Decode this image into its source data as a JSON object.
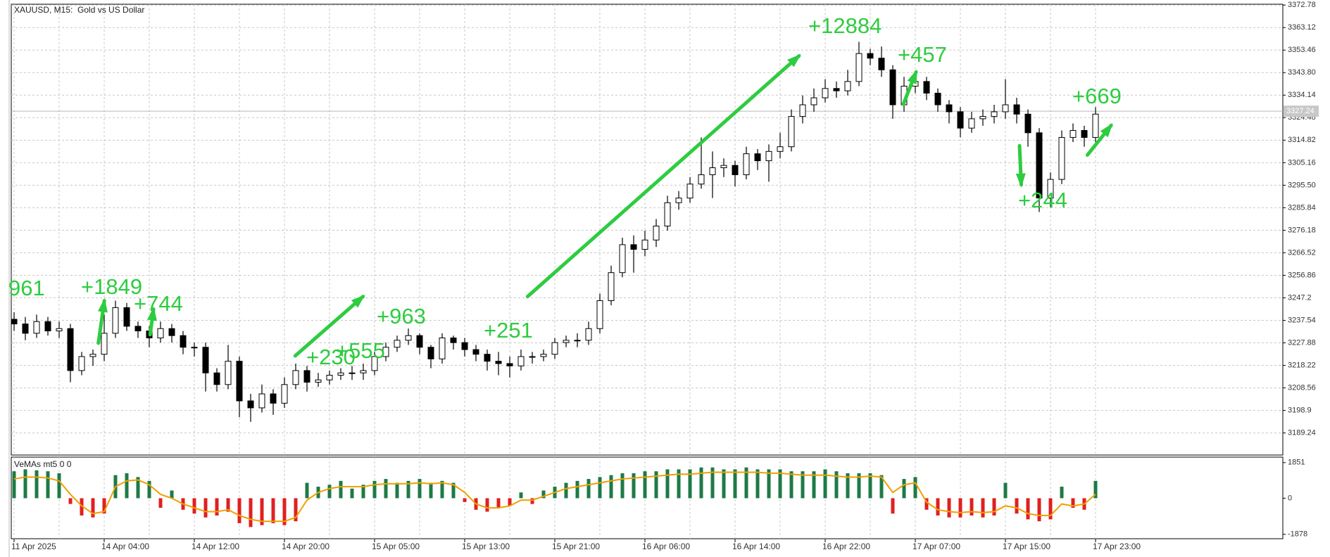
{
  "chart_data": [
    {
      "type": "candlestick",
      "title": "XAUUSD, M15:  Gold vs US Dollar",
      "categories": [
        "11 Apr 2025",
        null,
        null,
        null,
        null,
        null,
        null,
        null,
        "14 Apr 04:00",
        null,
        null,
        null,
        null,
        null,
        null,
        null,
        "14 Apr 12:00",
        null,
        null,
        null,
        null,
        null,
        null,
        null,
        "14 Apr 20:00",
        null,
        null,
        null,
        null,
        null,
        null,
        null,
        "15 Apr 05:00",
        null,
        null,
        null,
        null,
        null,
        null,
        null,
        "15 Apr 13:00",
        null,
        null,
        null,
        null,
        null,
        null,
        null,
        "15 Apr 21:00",
        null,
        null,
        null,
        null,
        null,
        null,
        null,
        "16 Apr 06:00",
        null,
        null,
        null,
        null,
        null,
        null,
        null,
        "16 Apr 14:00",
        null,
        null,
        null,
        null,
        null,
        null,
        null,
        "16 Apr 22:00",
        null,
        null,
        null,
        null,
        null,
        null,
        null,
        "17 Apr 07:00",
        null,
        null,
        null,
        null,
        null,
        null,
        null,
        "17 Apr 15:00",
        null,
        null,
        null,
        null,
        null,
        null,
        null,
        "17 Apr 23:00"
      ],
      "open": [
        3238,
        3236,
        3232,
        3237,
        3233,
        3234,
        3216,
        3222,
        3223,
        3232,
        3243,
        3235,
        3233,
        3230,
        3234,
        3231,
        3226,
        3226,
        3215,
        3210,
        3220,
        3203,
        3200,
        3206,
        3202,
        3210,
        3216,
        3211,
        3212,
        3214,
        3215,
        3215,
        3216,
        3222,
        3226,
        3229,
        3231,
        3226,
        3221,
        3230,
        3228,
        3225,
        3223,
        3220,
        3219,
        3218,
        3222,
        3222,
        3223,
        3228,
        3229,
        3229,
        3234,
        3246,
        3258,
        3270,
        3268,
        3272,
        3278,
        3288,
        3290,
        3296,
        3300,
        3303,
        3304,
        3300,
        3309,
        3306,
        3310,
        3312,
        3325,
        3330,
        3333,
        3337,
        3336,
        3340,
        3352,
        3350,
        3345,
        3330,
        3338,
        3340,
        3335,
        3330,
        3327,
        3320,
        3324,
        3325,
        3327,
        3330,
        3326,
        3318,
        3290,
        3298,
        3316,
        3319,
        3316
      ],
      "high": [
        3241,
        3239,
        3240,
        3239,
        3237,
        3236,
        3224,
        3225,
        3240,
        3246,
        3245,
        3237,
        3235,
        3237,
        3236,
        3233,
        3228,
        3228,
        3217,
        3227,
        3222,
        3206,
        3210,
        3208,
        3213,
        3219,
        3218,
        3215,
        3216,
        3217,
        3218,
        3219,
        3224,
        3228,
        3231,
        3234,
        3232,
        3227,
        3232,
        3231,
        3230,
        3227,
        3225,
        3224,
        3222,
        3225,
        3224,
        3225,
        3230,
        3231,
        3232,
        3237,
        3249,
        3261,
        3273,
        3274,
        3276,
        3281,
        3291,
        3293,
        3299,
        3316,
        3310,
        3307,
        3306,
        3312,
        3311,
        3313,
        3318,
        3328,
        3334,
        3337,
        3341,
        3340,
        3345,
        3357,
        3354,
        3355,
        3347,
        3342,
        3344,
        3342,
        3337,
        3332,
        3329,
        3327,
        3328,
        3330,
        3341,
        3333,
        3328,
        3320,
        3301,
        3319,
        3322,
        3321,
        3329
      ],
      "low": [
        3233,
        3229,
        3230,
        3231,
        3230,
        3211,
        3214,
        3218,
        3220,
        3230,
        3233,
        3230,
        3226,
        3228,
        3228,
        3223,
        3222,
        3207,
        3207,
        3208,
        3196,
        3194,
        3198,
        3197,
        3200,
        3208,
        3207,
        3209,
        3210,
        3212,
        3212,
        3212,
        3214,
        3220,
        3224,
        3227,
        3223,
        3217,
        3219,
        3225,
        3222,
        3220,
        3216,
        3214,
        3213,
        3216,
        3219,
        3220,
        3221,
        3226,
        3226,
        3227,
        3232,
        3244,
        3256,
        3258,
        3265,
        3269,
        3276,
        3285,
        3288,
        3294,
        3290,
        3299,
        3295,
        3298,
        3302,
        3297,
        3307,
        3310,
        3322,
        3327,
        3331,
        3333,
        3334,
        3338,
        3347,
        3342,
        3324,
        3327,
        3335,
        3332,
        3327,
        3322,
        3316,
        3318,
        3321,
        3322,
        3324,
        3322,
        3312,
        3284,
        3286,
        3296,
        3314,
        3312,
        3314
      ],
      "close": [
        3236,
        3232,
        3237,
        3233,
        3234,
        3216,
        3222,
        3223,
        3232,
        3243,
        3235,
        3233,
        3230,
        3234,
        3231,
        3226,
        3226,
        3215,
        3210,
        3220,
        3203,
        3200,
        3206,
        3202,
        3210,
        3216,
        3211,
        3212,
        3214,
        3215,
        3215,
        3216,
        3222,
        3226,
        3229,
        3231,
        3226,
        3221,
        3230,
        3228,
        3225,
        3223,
        3220,
        3219,
        3218,
        3222,
        3222,
        3223,
        3228,
        3229,
        3229,
        3234,
        3246,
        3258,
        3270,
        3268,
        3272,
        3278,
        3288,
        3290,
        3296,
        3300,
        3303,
        3304,
        3300,
        3309,
        3306,
        3310,
        3312,
        3325,
        3330,
        3333,
        3337,
        3336,
        3340,
        3352,
        3350,
        3345,
        3330,
        3338,
        3340,
        3335,
        3330,
        3327,
        3320,
        3324,
        3325,
        3327,
        3330,
        3326,
        3318,
        3290,
        3298,
        3316,
        3319,
        3316,
        3326
      ],
      "ylim": [
        3179.77,
        3373.14
      ],
      "yticks": [
        3372.78,
        3363.12,
        3353.46,
        {
          "value": 3343.8,
          "label": "3343.80"
        },
        3334.14,
        3324.48,
        3314.82,
        3305.16,
        {
          "value": 3295.5,
          "label": "3295.50"
        },
        3285.84,
        3276.18,
        3266.52,
        3256.86,
        3247.2,
        3237.54,
        3227.88,
        3218.22,
        3208.56,
        3198.9,
        3189.24
      ],
      "grid": true,
      "last_price": 3327.24,
      "up_color": "#ffffff",
      "down_color": "#000000",
      "annotations": [
        {
          "text": "961"
        },
        {
          "text": "+1849"
        },
        {
          "text": "+744"
        },
        {
          "text": "+230"
        },
        {
          "text": "+555"
        },
        {
          "text": "+963"
        },
        {
          "text": "+251"
        },
        {
          "text": "+12884"
        },
        {
          "text": "+457"
        },
        {
          "text": "+669"
        },
        {
          "text": "+244"
        }
      ],
      "annotation_color": "#2ecc40"
    },
    {
      "type": "histogram",
      "title": "VeMAs mt5 0 0",
      "values": [
        1400,
        1500,
        1450,
        1400,
        1300,
        -300,
        -900,
        -1000,
        -800,
        1200,
        1300,
        1100,
        900,
        -500,
        400,
        -600,
        -800,
        -1000,
        -900,
        -700,
        -1300,
        -1500,
        -1400,
        -1300,
        -1400,
        -1200,
        800,
        600,
        700,
        900,
        500,
        700,
        900,
        1000,
        800,
        900,
        1000,
        800,
        900,
        800,
        -200,
        -600,
        -700,
        -500,
        -400,
        300,
        -300,
        400,
        600,
        800,
        900,
        1000,
        1100,
        1200,
        1300,
        1300,
        1400,
        1400,
        1500,
        1500,
        1500,
        1600,
        1600,
        1500,
        1500,
        1600,
        1500,
        1500,
        1500,
        1400,
        1400,
        1400,
        1500,
        1400,
        1300,
        1300,
        1300,
        1200,
        -800,
        1000,
        1100,
        -600,
        -900,
        -1000,
        -1000,
        -900,
        -1000,
        -900,
        800,
        -800,
        -1100,
        -1200,
        -1100,
        600,
        -500,
        -600,
        900
      ],
      "line": [
        1000,
        1100,
        1100,
        1050,
        900,
        200,
        -400,
        -800,
        -700,
        600,
        900,
        950,
        700,
        200,
        0,
        -300,
        -500,
        -700,
        -700,
        -600,
        -900,
        -1100,
        -1200,
        -1200,
        -1200,
        -1000,
        -100,
        300,
        500,
        600,
        600,
        600,
        700,
        750,
        750,
        750,
        800,
        750,
        800,
        700,
        300,
        -300,
        -500,
        -500,
        -400,
        -100,
        -100,
        100,
        300,
        500,
        600,
        700,
        800,
        900,
        1000,
        1050,
        1100,
        1150,
        1200,
        1250,
        1250,
        1300,
        1350,
        1350,
        1350,
        1350,
        1350,
        1300,
        1300,
        1250,
        1200,
        1200,
        1200,
        1150,
        1100,
        1100,
        1150,
        1100,
        300,
        700,
        800,
        -200,
        -600,
        -700,
        -750,
        -700,
        -750,
        -700,
        -400,
        -500,
        -800,
        -900,
        -900,
        -300,
        -400,
        -300,
        200
      ],
      "ylim": [
        -2107,
        2136
      ],
      "yticks": [
        1851,
        0,
        -1878
      ],
      "positive_color": "#1e7a46",
      "negative_color": "#e02020",
      "line_color": "#f0a000"
    }
  ]
}
